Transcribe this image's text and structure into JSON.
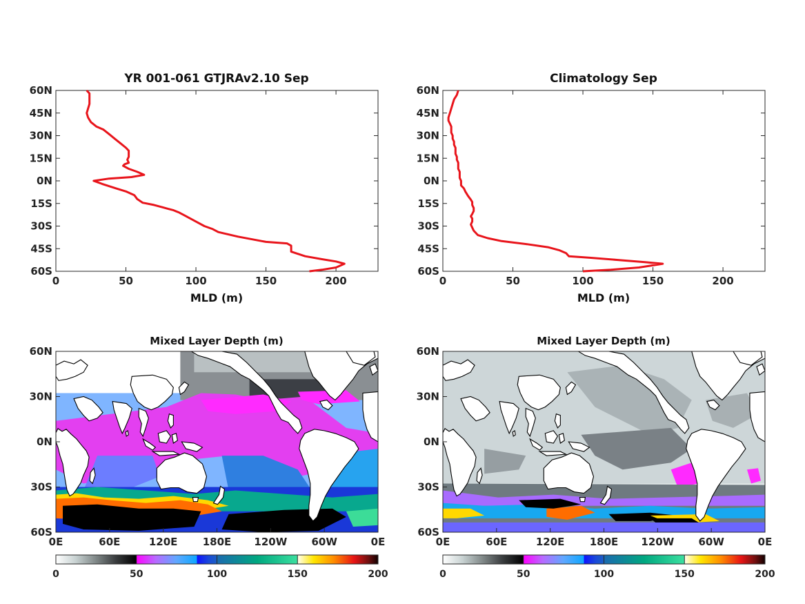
{
  "chart_data": [
    {
      "type": "line",
      "title": "YR 001-061 GTJRAv2.10 Sep",
      "xlabel": "MLD (m)",
      "ylabel": "",
      "xlim": [
        0,
        230
      ],
      "ylim": [
        -60,
        60
      ],
      "xticks": [
        0,
        50,
        100,
        150,
        200
      ],
      "yticks": [
        "60S",
        "45S",
        "30S",
        "15S",
        "0N",
        "15N",
        "30N",
        "45N",
        "60N"
      ],
      "series_color": "#e8141b",
      "points": [
        [
          181,
          -60
        ],
        [
          190,
          -59
        ],
        [
          200,
          -57.5
        ],
        [
          206,
          -55
        ],
        [
          200,
          -53.5
        ],
        [
          190,
          -52
        ],
        [
          178,
          -50
        ],
        [
          168,
          -47
        ],
        [
          168,
          -43
        ],
        [
          165,
          -41.5
        ],
        [
          150,
          -40.5
        ],
        [
          130,
          -37
        ],
        [
          116,
          -34
        ],
        [
          112,
          -32
        ],
        [
          106,
          -30
        ],
        [
          100,
          -27
        ],
        [
          96,
          -25
        ],
        [
          92,
          -23
        ],
        [
          88,
          -21
        ],
        [
          84,
          -19.5
        ],
        [
          80,
          -18.5
        ],
        [
          76,
          -17.5
        ],
        [
          70,
          -16
        ],
        [
          62,
          -14.5
        ],
        [
          58,
          -12
        ],
        [
          56,
          -9.5
        ],
        [
          50,
          -7
        ],
        [
          43,
          -5
        ],
        [
          33,
          -2
        ],
        [
          27,
          0
        ],
        [
          38,
          1.5
        ],
        [
          54,
          2.5
        ],
        [
          63,
          4
        ],
        [
          58,
          6
        ],
        [
          52,
          8
        ],
        [
          48,
          10
        ],
        [
          49,
          11
        ],
        [
          52,
          12
        ],
        [
          51,
          14
        ],
        [
          52,
          16
        ],
        [
          52,
          18
        ],
        [
          52,
          20
        ],
        [
          50,
          22
        ],
        [
          46,
          25
        ],
        [
          42,
          28
        ],
        [
          38,
          31
        ],
        [
          34,
          34
        ],
        [
          29,
          36
        ],
        [
          25,
          39
        ],
        [
          23,
          42
        ],
        [
          22,
          45
        ],
        [
          23,
          48
        ],
        [
          24,
          51
        ],
        [
          24,
          53
        ],
        [
          24,
          56
        ],
        [
          24,
          58
        ],
        [
          22,
          60
        ]
      ]
    },
    {
      "type": "line",
      "title": "Climatology Sep",
      "xlabel": "MLD (m)",
      "ylabel": "",
      "xlim": [
        0,
        230
      ],
      "ylim": [
        -60,
        60
      ],
      "xticks": [
        0,
        50,
        100,
        150,
        200
      ],
      "yticks": [
        "60S",
        "45S",
        "30S",
        "15S",
        "0N",
        "15N",
        "30N",
        "45N",
        "60N"
      ],
      "series_color": "#e8141b",
      "points": [
        [
          100,
          -60
        ],
        [
          120,
          -59
        ],
        [
          140,
          -57.5
        ],
        [
          157,
          -55
        ],
        [
          145,
          -54
        ],
        [
          125,
          -52.5
        ],
        [
          105,
          -51
        ],
        [
          90,
          -50
        ],
        [
          88,
          -48
        ],
        [
          83,
          -46
        ],
        [
          75,
          -44
        ],
        [
          60,
          -42
        ],
        [
          42,
          -40
        ],
        [
          32,
          -38
        ],
        [
          25,
          -36
        ],
        [
          22,
          -33
        ],
        [
          21,
          -31
        ],
        [
          20,
          -29
        ],
        [
          21,
          -27
        ],
        [
          21,
          -25
        ],
        [
          20,
          -23.5
        ],
        [
          21,
          -22
        ],
        [
          22,
          -20
        ],
        [
          22,
          -18
        ],
        [
          21,
          -16
        ],
        [
          21,
          -14
        ],
        [
          20,
          -12.5
        ],
        [
          18,
          -10
        ],
        [
          16,
          -7
        ],
        [
          15,
          -5
        ],
        [
          13,
          -3
        ],
        [
          13,
          0
        ],
        [
          12,
          2
        ],
        [
          12,
          4
        ],
        [
          12,
          6
        ],
        [
          11,
          8
        ],
        [
          11,
          10
        ],
        [
          11,
          12
        ],
        [
          10,
          14
        ],
        [
          10,
          16
        ],
        [
          9,
          18
        ],
        [
          9,
          20
        ],
        [
          9,
          22
        ],
        [
          8,
          24
        ],
        [
          8,
          26
        ],
        [
          7,
          28
        ],
        [
          7,
          30
        ],
        [
          6,
          32
        ],
        [
          6,
          34
        ],
        [
          6,
          36
        ],
        [
          5,
          38
        ],
        [
          4,
          40
        ],
        [
          4,
          42
        ],
        [
          5,
          45
        ],
        [
          6,
          48
        ],
        [
          7,
          51
        ],
        [
          8,
          54
        ],
        [
          10,
          57
        ],
        [
          11,
          60
        ]
      ]
    },
    {
      "type": "heatmap",
      "title": "Mixed Layer Depth (m)",
      "xticks": [
        "0E",
        "60E",
        "120E",
        "180E",
        "120W",
        "60W",
        "0E"
      ],
      "yticks": [
        "60S",
        "30S",
        "0N",
        "30N",
        "60N"
      ],
      "colorbar_ticks": [
        "0",
        "50",
        "100",
        "150",
        "200"
      ],
      "colorbar_range": [
        0,
        200
      ]
    },
    {
      "type": "heatmap",
      "title": "Mixed Layer Depth (m)",
      "xticks": [
        "0E",
        "60E",
        "120E",
        "180E",
        "120W",
        "60W",
        "0E"
      ],
      "yticks": [
        "60S",
        "30S",
        "0N",
        "30N",
        "60N"
      ],
      "colorbar_ticks": [
        "0",
        "50",
        "100",
        "150",
        "200"
      ],
      "colorbar_range": [
        0,
        200
      ]
    }
  ]
}
